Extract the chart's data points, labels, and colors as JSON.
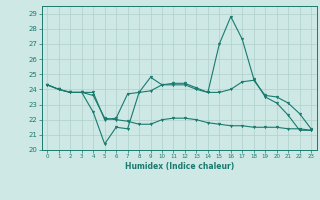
{
  "xlabel": "Humidex (Indice chaleur)",
  "ylabel": "",
  "bg_color": "#cde8e5",
  "line_color": "#1a7a6e",
  "grid_color": "#b0d0cc",
  "xlim": [
    -0.5,
    23.5
  ],
  "ylim": [
    20,
    29.5
  ],
  "yticks": [
    20,
    21,
    22,
    23,
    24,
    25,
    26,
    27,
    28,
    29
  ],
  "xticks": [
    0,
    1,
    2,
    3,
    4,
    5,
    6,
    7,
    8,
    9,
    10,
    11,
    12,
    13,
    14,
    15,
    16,
    17,
    18,
    19,
    20,
    21,
    22,
    23
  ],
  "line1": [
    24.3,
    24.0,
    23.8,
    23.8,
    22.5,
    20.4,
    21.5,
    21.4,
    23.8,
    24.8,
    24.3,
    24.4,
    24.4,
    24.1,
    23.8,
    27.0,
    28.8,
    27.3,
    24.7,
    23.5,
    23.1,
    22.3,
    21.3,
    21.3
  ],
  "line2": [
    24.3,
    24.0,
    23.8,
    23.8,
    23.8,
    22.0,
    22.1,
    23.7,
    23.8,
    23.9,
    24.3,
    24.3,
    24.3,
    24.0,
    23.8,
    23.8,
    24.0,
    24.5,
    24.6,
    23.6,
    23.5,
    23.1,
    22.4,
    21.4
  ],
  "line3": [
    24.3,
    24.0,
    23.8,
    23.8,
    23.6,
    22.1,
    22.0,
    21.9,
    21.7,
    21.7,
    22.0,
    22.1,
    22.1,
    22.0,
    21.8,
    21.7,
    21.6,
    21.6,
    21.5,
    21.5,
    21.5,
    21.4,
    21.4,
    21.3
  ]
}
